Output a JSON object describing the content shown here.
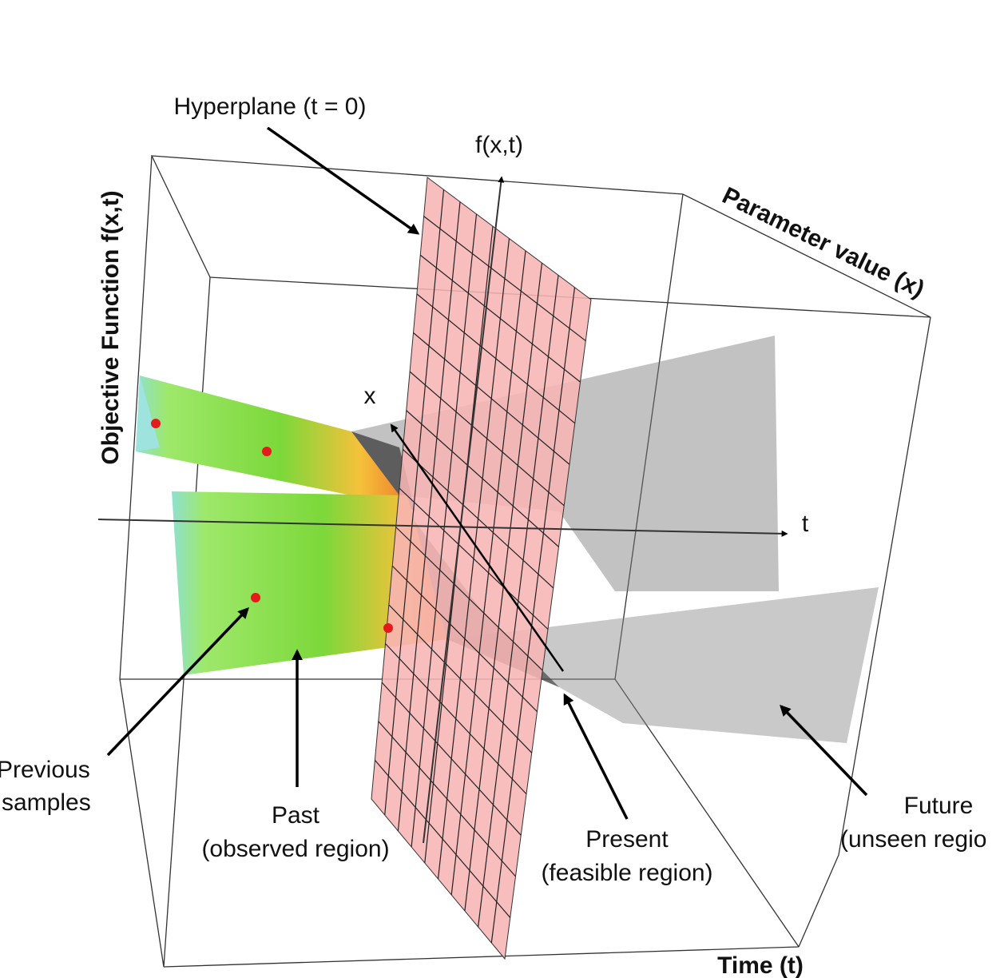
{
  "labels": {
    "hyperplane": "Hyperplane (t = 0)",
    "f_axis": "f(x,t)",
    "parameter_axis": "Parameter value (x)",
    "objective_axis": "Objective Function f(x,t)",
    "x_axis": "x",
    "t_axis": "t",
    "time_axis": "Time (t)",
    "previous": [
      "Previous",
      "samples"
    ],
    "past": [
      "Past",
      "(observed region)"
    ],
    "present": [
      "Present",
      "(feasible region)"
    ],
    "future": [
      "Future",
      "(unseen regio"
    ]
  }
}
